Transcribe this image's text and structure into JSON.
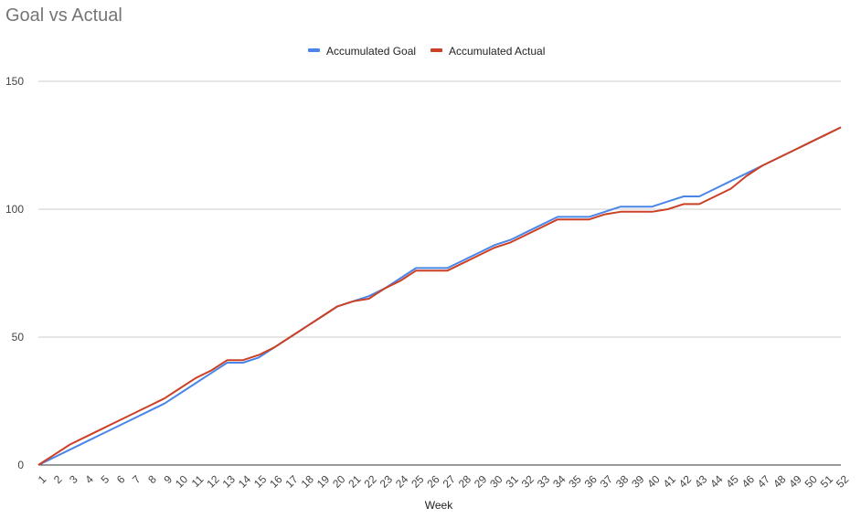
{
  "chart_data": {
    "type": "line",
    "title": "Goal vs Actual",
    "xlabel": "Week",
    "ylabel": "",
    "ylim": [
      0,
      150
    ],
    "yticks": [
      0,
      50,
      100,
      150
    ],
    "grid": true,
    "legend": "top-center",
    "x": [
      1,
      2,
      3,
      4,
      5,
      6,
      7,
      8,
      9,
      10,
      11,
      12,
      13,
      14,
      15,
      16,
      17,
      18,
      19,
      20,
      21,
      22,
      23,
      24,
      25,
      26,
      27,
      28,
      29,
      30,
      31,
      32,
      33,
      34,
      35,
      36,
      37,
      38,
      39,
      40,
      41,
      42,
      43,
      44,
      45,
      46,
      47,
      48,
      49,
      50,
      51,
      52
    ],
    "series": [
      {
        "name": "Accumulated Goal",
        "color": "#4a86e8",
        "values": [
          0,
          3,
          6,
          9,
          12,
          15,
          18,
          21,
          24,
          28,
          32,
          36,
          40,
          40,
          42,
          46,
          50,
          54,
          58,
          62,
          64,
          66,
          69,
          73,
          77,
          77,
          77,
          80,
          83,
          86,
          88,
          91,
          94,
          97,
          97,
          97,
          99,
          101,
          101,
          101,
          103,
          105,
          105,
          108,
          111,
          114,
          117,
          120,
          123,
          126,
          129,
          132
        ]
      },
      {
        "name": "Accumulated Actual",
        "color": "#cc4125",
        "values": [
          0,
          4,
          8,
          11,
          14,
          17,
          20,
          23,
          26,
          30,
          34,
          37,
          41,
          41,
          43,
          46,
          50,
          54,
          58,
          62,
          64,
          65,
          69,
          72,
          76,
          76,
          76,
          79,
          82,
          85,
          87,
          90,
          93,
          96,
          96,
          96,
          98,
          99,
          99,
          99,
          100,
          102,
          102,
          105,
          108,
          113,
          117,
          120,
          123,
          126,
          129,
          132
        ]
      }
    ]
  }
}
